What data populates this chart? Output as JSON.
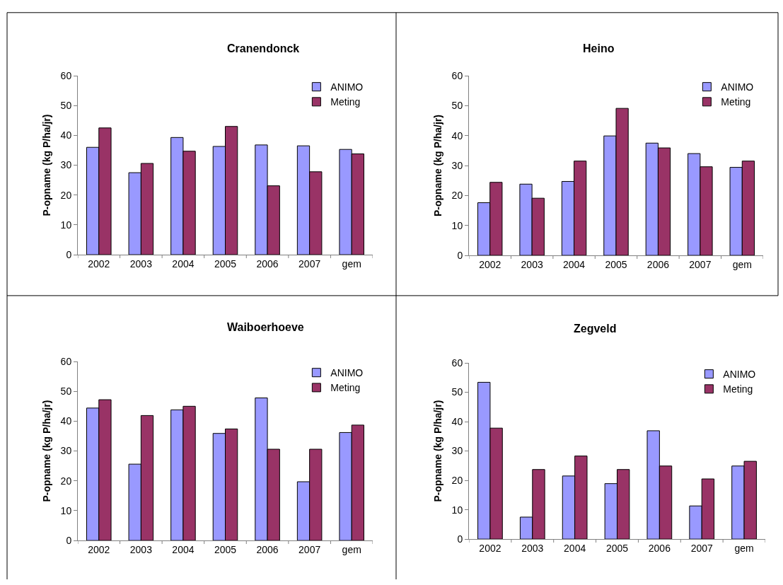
{
  "chart_data": [
    {
      "type": "bar",
      "title": "Cranendonck",
      "ylabel": "P-opname (kg P/ha/jr)",
      "categories": [
        "2002",
        "2003",
        "2004",
        "2005",
        "2006",
        "2007",
        "gem"
      ],
      "ylim": [
        0,
        60
      ],
      "yticks": [
        0,
        10,
        20,
        30,
        40,
        50,
        60
      ],
      "grid": false,
      "legend": "top right",
      "series": [
        {
          "name": "ANIMO",
          "color": "#9999ff",
          "values": [
            36,
            27.5,
            39.3,
            36.3,
            36.8,
            36.5,
            35.3
          ]
        },
        {
          "name": "Meting",
          "color": "#993366",
          "values": [
            42.5,
            30.6,
            34.7,
            43,
            23.1,
            27.8,
            33.8
          ]
        }
      ]
    },
    {
      "type": "bar",
      "title": "Heino",
      "ylabel": "P-opname (kg P/ha/jr)",
      "categories": [
        "2002",
        "2003",
        "2004",
        "2005",
        "2006",
        "2007",
        "gem"
      ],
      "ylim": [
        0,
        60
      ],
      "yticks": [
        0,
        10,
        20,
        30,
        40,
        50,
        60
      ],
      "grid": false,
      "legend": "top right",
      "series": [
        {
          "name": "ANIMO",
          "color": "#9999ff",
          "values": [
            17.6,
            23.8,
            24.7,
            39.9,
            37.5,
            34,
            29.4
          ]
        },
        {
          "name": "Meting",
          "color": "#993366",
          "values": [
            24.4,
            19.1,
            31.5,
            49.1,
            35.9,
            29.6,
            31.5
          ]
        }
      ]
    },
    {
      "type": "bar",
      "title": "Waiboerhoeve",
      "ylabel": "P-opname (kg P/ha/jr)",
      "categories": [
        "2002",
        "2003",
        "2004",
        "2005",
        "2006",
        "2007",
        "gem"
      ],
      "ylim": [
        0,
        60
      ],
      "yticks": [
        0,
        10,
        20,
        30,
        40,
        50,
        60
      ],
      "grid": false,
      "legend": "top right",
      "series": [
        {
          "name": "ANIMO",
          "color": "#9999ff",
          "values": [
            44.4,
            25.6,
            43.8,
            35.9,
            47.8,
            19.7,
            36.2
          ]
        },
        {
          "name": "Meting",
          "color": "#993366",
          "values": [
            47.2,
            41.9,
            45,
            37.4,
            30.6,
            30.6,
            38.7
          ]
        }
      ]
    },
    {
      "type": "bar",
      "title": "Zegveld",
      "ylabel": "P-opname (kg P/ha/jr)",
      "categories": [
        "2002",
        "2003",
        "2004",
        "2005",
        "2006",
        "2007",
        "gem"
      ],
      "ylim": [
        0,
        60
      ],
      "yticks": [
        0,
        10,
        20,
        30,
        40,
        50,
        60
      ],
      "grid": false,
      "legend": "top right",
      "series": [
        {
          "name": "ANIMO",
          "color": "#9999ff",
          "values": [
            53.4,
            7.5,
            21.5,
            18.9,
            36.9,
            11.3,
            24.9
          ]
        },
        {
          "name": "Meting",
          "color": "#993366",
          "values": [
            37.8,
            23.7,
            28.3,
            23.7,
            24.9,
            20.5,
            26.5
          ]
        }
      ]
    }
  ]
}
